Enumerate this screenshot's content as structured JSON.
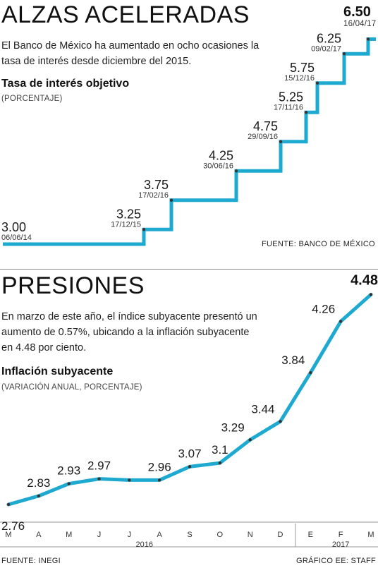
{
  "section1": {
    "title": "ALZAS ACELERADAS",
    "headline_value": "6.50",
    "headline_date": "16/04/17",
    "intro": "El Banco de México ha aumentado en ocho ocasiones la tasa de interés desde diciembre del 2015.",
    "subtitle": "Tasa de interés objetivo",
    "unit": "(PORCENTAJE)",
    "source": "FUENTE: BANCO DE MÉXICO"
  },
  "section2": {
    "title": "PRESIONES",
    "intro": "En marzo de este año, el índice subyacente presentó un aumento de 0.57%, ubicando a la inflación subyacente en 4.48 por ciento.",
    "subtitle": "Inflación subyacente",
    "unit": "(VARIACIÓN ANUAL, PORCENTAJE)",
    "source_left": "FUENTE: INEGI",
    "source_right": "GRÁFICO EE: STAFF"
  },
  "colors": {
    "line": "#1ea9d0",
    "marker": "#333333",
    "text": "#1a1a1a"
  },
  "chart_data": [
    {
      "type": "line",
      "step": true,
      "title": "Tasa de interés objetivo",
      "unit": "(PORCENTAJE)",
      "points": [
        {
          "date": "06/06/14",
          "value": 3.0,
          "label": "3.00"
        },
        {
          "date": "17/12/15",
          "value": 3.25,
          "label": "3.25"
        },
        {
          "date": "17/02/16",
          "value": 3.75,
          "label": "3.75"
        },
        {
          "date": "30/06/16",
          "value": 4.25,
          "label": "4.25"
        },
        {
          "date": "29/09/16",
          "value": 4.75,
          "label": "4.75"
        },
        {
          "date": "17/11/16",
          "value": 5.25,
          "label": "5.25"
        },
        {
          "date": "15/12/16",
          "value": 5.75,
          "label": "5.75"
        },
        {
          "date": "09/02/17",
          "value": 6.25,
          "label": "6.25"
        },
        {
          "date": "16/04/17",
          "value": 6.5,
          "label": "6.50"
        }
      ]
    },
    {
      "type": "line",
      "title": "Inflación subyacente",
      "unit": "(VARIACIÓN ANUAL, PORCENTAJE)",
      "categories": [
        "M",
        "A",
        "M",
        "J",
        "J",
        "A",
        "S",
        "O",
        "N",
        "D",
        "E",
        "F",
        "M"
      ],
      "years": [
        {
          "label": "2016",
          "from": 0,
          "to": 9
        },
        {
          "label": "2017",
          "from": 10,
          "to": 12
        }
      ],
      "series": [
        {
          "values": [
            2.76,
            2.83,
            2.93,
            2.97,
            2.96,
            2.96,
            3.07,
            3.1,
            3.29,
            3.44,
            3.84,
            4.26,
            4.48
          ],
          "labels": [
            "2.76",
            "2.83",
            "2.93",
            "2.97",
            "",
            "2.96",
            "3.07",
            "3.1",
            "3.29",
            "3.44",
            "3.84",
            "4.26",
            "4.48"
          ]
        }
      ]
    }
  ]
}
